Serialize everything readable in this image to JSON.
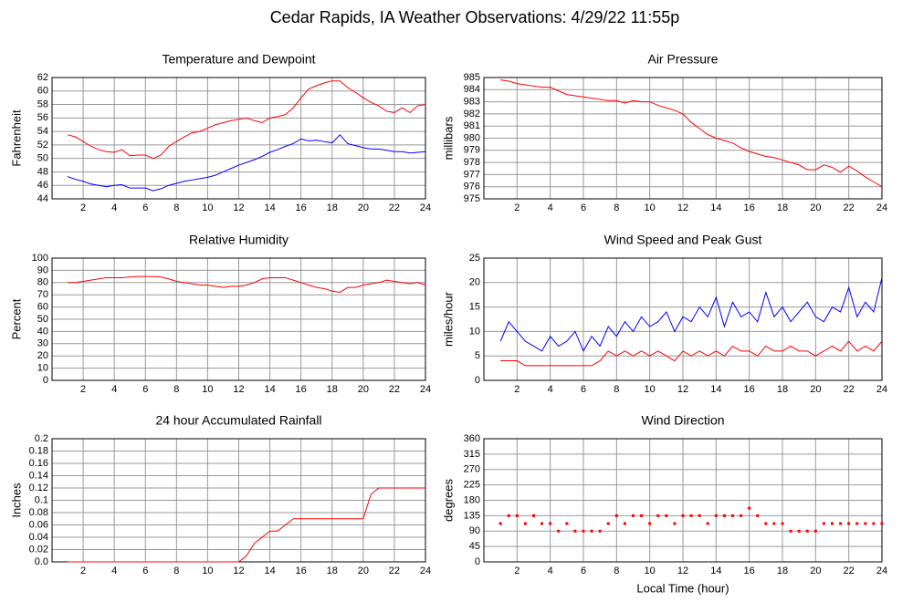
{
  "title": "Cedar Rapids, IA Weather Observations: 4/29/22 11:55p",
  "chart_data": [
    {
      "type": "line",
      "title": "Temperature and Dewpoint",
      "ylabel": "Fahrenheit",
      "x": [
        1,
        1.5,
        2,
        2.5,
        3,
        3.5,
        4,
        4.5,
        5,
        5.5,
        6,
        6.5,
        7,
        7.5,
        8,
        8.5,
        9,
        9.5,
        10,
        10.5,
        11,
        11.5,
        12,
        12.5,
        13,
        13.5,
        14,
        14.5,
        15,
        15.5,
        16,
        16.5,
        17,
        17.5,
        18,
        18.5,
        19,
        19.5,
        20,
        20.5,
        21,
        21.5,
        22,
        22.5,
        23,
        23.5,
        24
      ],
      "series": [
        {
          "color": "#ff0000",
          "values": [
            53.5,
            53.2,
            52.5,
            51.8,
            51.3,
            51,
            50.9,
            51.3,
            50.4,
            50.5,
            50.5,
            50,
            50.5,
            51.8,
            52.5,
            53.2,
            53.8,
            54,
            54.5,
            55,
            55.3,
            55.6,
            55.8,
            56,
            55.6,
            55.3,
            56,
            56.2,
            56.5,
            57.5,
            59,
            60.3,
            60.8,
            61.2,
            61.5,
            61.5,
            60.5,
            59.8,
            59,
            58.3,
            57.8,
            57,
            56.8,
            57.5,
            56.8,
            57.8,
            58
          ]
        },
        {
          "color": "#0000ff",
          "values": [
            47.3,
            46.9,
            46.6,
            46.2,
            46,
            45.8,
            46,
            46.1,
            45.6,
            45.6,
            45.6,
            45.2,
            45.5,
            46,
            46.3,
            46.6,
            46.8,
            47,
            47.2,
            47.5,
            48,
            48.5,
            49,
            49.4,
            49.8,
            50.3,
            50.9,
            51.3,
            51.8,
            52.2,
            52.9,
            52.6,
            52.7,
            52.5,
            52.3,
            53.5,
            52.2,
            51.9,
            51.6,
            51.4,
            51.4,
            51.2,
            51,
            51,
            50.8,
            50.9,
            51
          ]
        }
      ],
      "xlim": [
        0,
        24
      ],
      "xticks": [
        2,
        4,
        6,
        8,
        10,
        12,
        14,
        16,
        18,
        20,
        22,
        24
      ],
      "ylim": [
        44,
        62
      ],
      "yticks": [
        44,
        46,
        48,
        50,
        52,
        54,
        56,
        58,
        60,
        62
      ],
      "grid": true
    },
    {
      "type": "line",
      "title": "Air Pressure",
      "ylabel": "millibars",
      "x": [
        1,
        1.5,
        2,
        2.5,
        3,
        3.5,
        4,
        4.5,
        5,
        5.5,
        6,
        6.5,
        7,
        7.5,
        8,
        8.5,
        9,
        9.5,
        10,
        10.5,
        11,
        11.5,
        12,
        12.5,
        13,
        13.5,
        14,
        14.5,
        15,
        15.5,
        16,
        16.5,
        17,
        17.5,
        18,
        18.5,
        19,
        19.5,
        20,
        20.5,
        21,
        21.5,
        22,
        22.5,
        23,
        23.5,
        24
      ],
      "series": [
        {
          "color": "#ff0000",
          "values": [
            984.8,
            984.7,
            984.5,
            984.4,
            984.3,
            984.2,
            984.2,
            983.9,
            983.6,
            983.5,
            983.4,
            983.3,
            983.2,
            983.1,
            983.1,
            982.9,
            983.1,
            983,
            983,
            982.7,
            982.5,
            982.3,
            982,
            981.3,
            980.8,
            980.3,
            980,
            979.8,
            979.6,
            979.2,
            978.9,
            978.7,
            978.5,
            978.4,
            978.2,
            978,
            977.8,
            977.4,
            977.4,
            977.8,
            977.6,
            977.2,
            977.7,
            977.3,
            976.8,
            976.4,
            976
          ]
        }
      ],
      "xlim": [
        0,
        24
      ],
      "xticks": [
        2,
        4,
        6,
        8,
        10,
        12,
        14,
        16,
        18,
        20,
        22,
        24
      ],
      "ylim": [
        975,
        985
      ],
      "yticks": [
        975,
        976,
        977,
        978,
        979,
        980,
        981,
        982,
        983,
        984,
        985
      ],
      "grid": true
    },
    {
      "type": "line",
      "title": "Relative Humidity",
      "ylabel": "Percent",
      "x": [
        1,
        1.5,
        2,
        2.5,
        3,
        3.5,
        4,
        4.5,
        5,
        5.5,
        6,
        6.5,
        7,
        7.5,
        8,
        8.5,
        9,
        9.5,
        10,
        10.5,
        11,
        11.5,
        12,
        12.5,
        13,
        13.5,
        14,
        14.5,
        15,
        15.5,
        16,
        16.5,
        17,
        17.5,
        18,
        18.5,
        19,
        19.5,
        20,
        20.5,
        21,
        21.5,
        22,
        22.5,
        23,
        23.5,
        24
      ],
      "series": [
        {
          "color": "#ff0000",
          "values": [
            80,
            80,
            81,
            82,
            83,
            84,
            84,
            84,
            84.5,
            85,
            85,
            85,
            84.5,
            83,
            81,
            80,
            79,
            78,
            78,
            77,
            76,
            77,
            77,
            78,
            80,
            83,
            84,
            84,
            84,
            82,
            80,
            78,
            76,
            75,
            73,
            72,
            76,
            76,
            78,
            79,
            80,
            82,
            81,
            80,
            79,
            80,
            78
          ]
        }
      ],
      "xlim": [
        0,
        24
      ],
      "xticks": [
        2,
        4,
        6,
        8,
        10,
        12,
        14,
        16,
        18,
        20,
        22,
        24
      ],
      "ylim": [
        0,
        100
      ],
      "yticks": [
        0,
        10,
        20,
        30,
        40,
        50,
        60,
        70,
        80,
        90,
        100
      ],
      "grid": true
    },
    {
      "type": "line",
      "title": "Wind Speed and Peak Gust",
      "ylabel": "miles/hour",
      "x": [
        1,
        1.5,
        2,
        2.5,
        3,
        3.5,
        4,
        4.5,
        5,
        5.5,
        6,
        6.5,
        7,
        7.5,
        8,
        8.5,
        9,
        9.5,
        10,
        10.5,
        11,
        11.5,
        12,
        12.5,
        13,
        13.5,
        14,
        14.5,
        15,
        15.5,
        16,
        16.5,
        17,
        17.5,
        18,
        18.5,
        19,
        19.5,
        20,
        20.5,
        21,
        21.5,
        22,
        22.5,
        23,
        23.5,
        24
      ],
      "series": [
        {
          "color": "#0000ff",
          "values": [
            8,
            12,
            10,
            8,
            7,
            6,
            9,
            7,
            8,
            10,
            6,
            9,
            7,
            11,
            9,
            12,
            10,
            13,
            11,
            12,
            14,
            10,
            13,
            12,
            15,
            13,
            17,
            11,
            16,
            13,
            14,
            12,
            18,
            13,
            15,
            12,
            14,
            16,
            13,
            12,
            15,
            14,
            19,
            13,
            16,
            14,
            21
          ]
        },
        {
          "color": "#ff0000",
          "values": [
            4,
            4,
            4,
            3,
            3,
            3,
            3,
            3,
            3,
            3,
            3,
            3,
            4,
            6,
            5,
            6,
            5,
            6,
            5,
            6,
            5,
            4,
            6,
            5,
            6,
            5,
            6,
            5,
            7,
            6,
            6,
            5,
            7,
            6,
            6,
            7,
            6,
            6,
            5,
            6,
            7,
            6,
            8,
            6,
            7,
            6,
            8
          ]
        }
      ],
      "xlim": [
        0,
        24
      ],
      "xticks": [
        2,
        4,
        6,
        8,
        10,
        12,
        14,
        16,
        18,
        20,
        22,
        24
      ],
      "ylim": [
        0,
        25
      ],
      "yticks": [
        0,
        5,
        10,
        15,
        20,
        25
      ],
      "grid": true
    },
    {
      "type": "line",
      "title": "24 hour Accumulated Rainfall",
      "ylabel": "Inches",
      "x": [
        1,
        1.5,
        2,
        2.5,
        3,
        3.5,
        4,
        4.5,
        5,
        5.5,
        6,
        6.5,
        7,
        7.5,
        8,
        8.5,
        9,
        9.5,
        10,
        10.5,
        11,
        11.5,
        12,
        12.5,
        13,
        13.5,
        14,
        14.5,
        15,
        15.5,
        16,
        16.5,
        17,
        17.5,
        18,
        18.5,
        19,
        19.5,
        20,
        20.5,
        21,
        21.5,
        22,
        22.5,
        23,
        23.5,
        24
      ],
      "series": [
        {
          "color": "#ff0000",
          "values": [
            0,
            0,
            0,
            0,
            0,
            0,
            0,
            0,
            0,
            0,
            0,
            0,
            0,
            0,
            0,
            0,
            0,
            0,
            0,
            0,
            0,
            0,
            0,
            0.01,
            0.03,
            0.04,
            0.05,
            0.05,
            0.06,
            0.07,
            0.07,
            0.07,
            0.07,
            0.07,
            0.07,
            0.07,
            0.07,
            0.07,
            0.07,
            0.11,
            0.12,
            0.12,
            0.12,
            0.12,
            0.12,
            0.12,
            0.12
          ]
        }
      ],
      "xlim": [
        0,
        24
      ],
      "xticks": [
        2,
        4,
        6,
        8,
        10,
        12,
        14,
        16,
        18,
        20,
        22,
        24
      ],
      "ylim": [
        0,
        0.2
      ],
      "yticks": [
        {
          "value": 0,
          "label": "0.0"
        },
        0.02,
        0.04,
        0.06,
        0.08,
        0.1,
        0.12,
        0.14,
        0.16,
        0.18,
        0.2
      ],
      "grid": true
    },
    {
      "type": "scatter",
      "title": "Wind Direction",
      "ylabel": "degrees",
      "xlabel": "Local Time (hour)",
      "x": [
        1,
        1.5,
        2,
        2.5,
        3,
        3.5,
        4,
        4.5,
        5,
        5.5,
        6,
        6.5,
        7,
        7.5,
        8,
        8.5,
        9,
        9.5,
        10,
        10.5,
        11,
        11.5,
        12,
        12.5,
        13,
        13.5,
        14,
        14.5,
        15,
        15.5,
        16,
        16.5,
        17,
        17.5,
        18,
        18.5,
        19,
        19.5,
        20,
        20.5,
        21,
        21.5,
        22,
        22.5,
        23,
        23.5,
        24
      ],
      "series": [
        {
          "color": "#ff0000",
          "values": [
            112,
            135,
            135,
            112,
            135,
            112,
            112,
            90,
            112,
            90,
            90,
            90,
            90,
            112,
            135,
            112,
            135,
            135,
            112,
            135,
            135,
            112,
            135,
            135,
            135,
            112,
            135,
            135,
            135,
            135,
            157,
            135,
            112,
            112,
            112,
            90,
            90,
            90,
            90,
            112,
            112,
            112,
            112,
            112,
            112,
            112,
            112
          ]
        }
      ],
      "xlim": [
        0,
        24
      ],
      "xticks": [
        2,
        4,
        6,
        8,
        10,
        12,
        14,
        16,
        18,
        20,
        22,
        24
      ],
      "ylim": [
        0,
        360
      ],
      "yticks": [
        0,
        45,
        90,
        135,
        180,
        225,
        270,
        315,
        360
      ],
      "grid": true
    }
  ]
}
